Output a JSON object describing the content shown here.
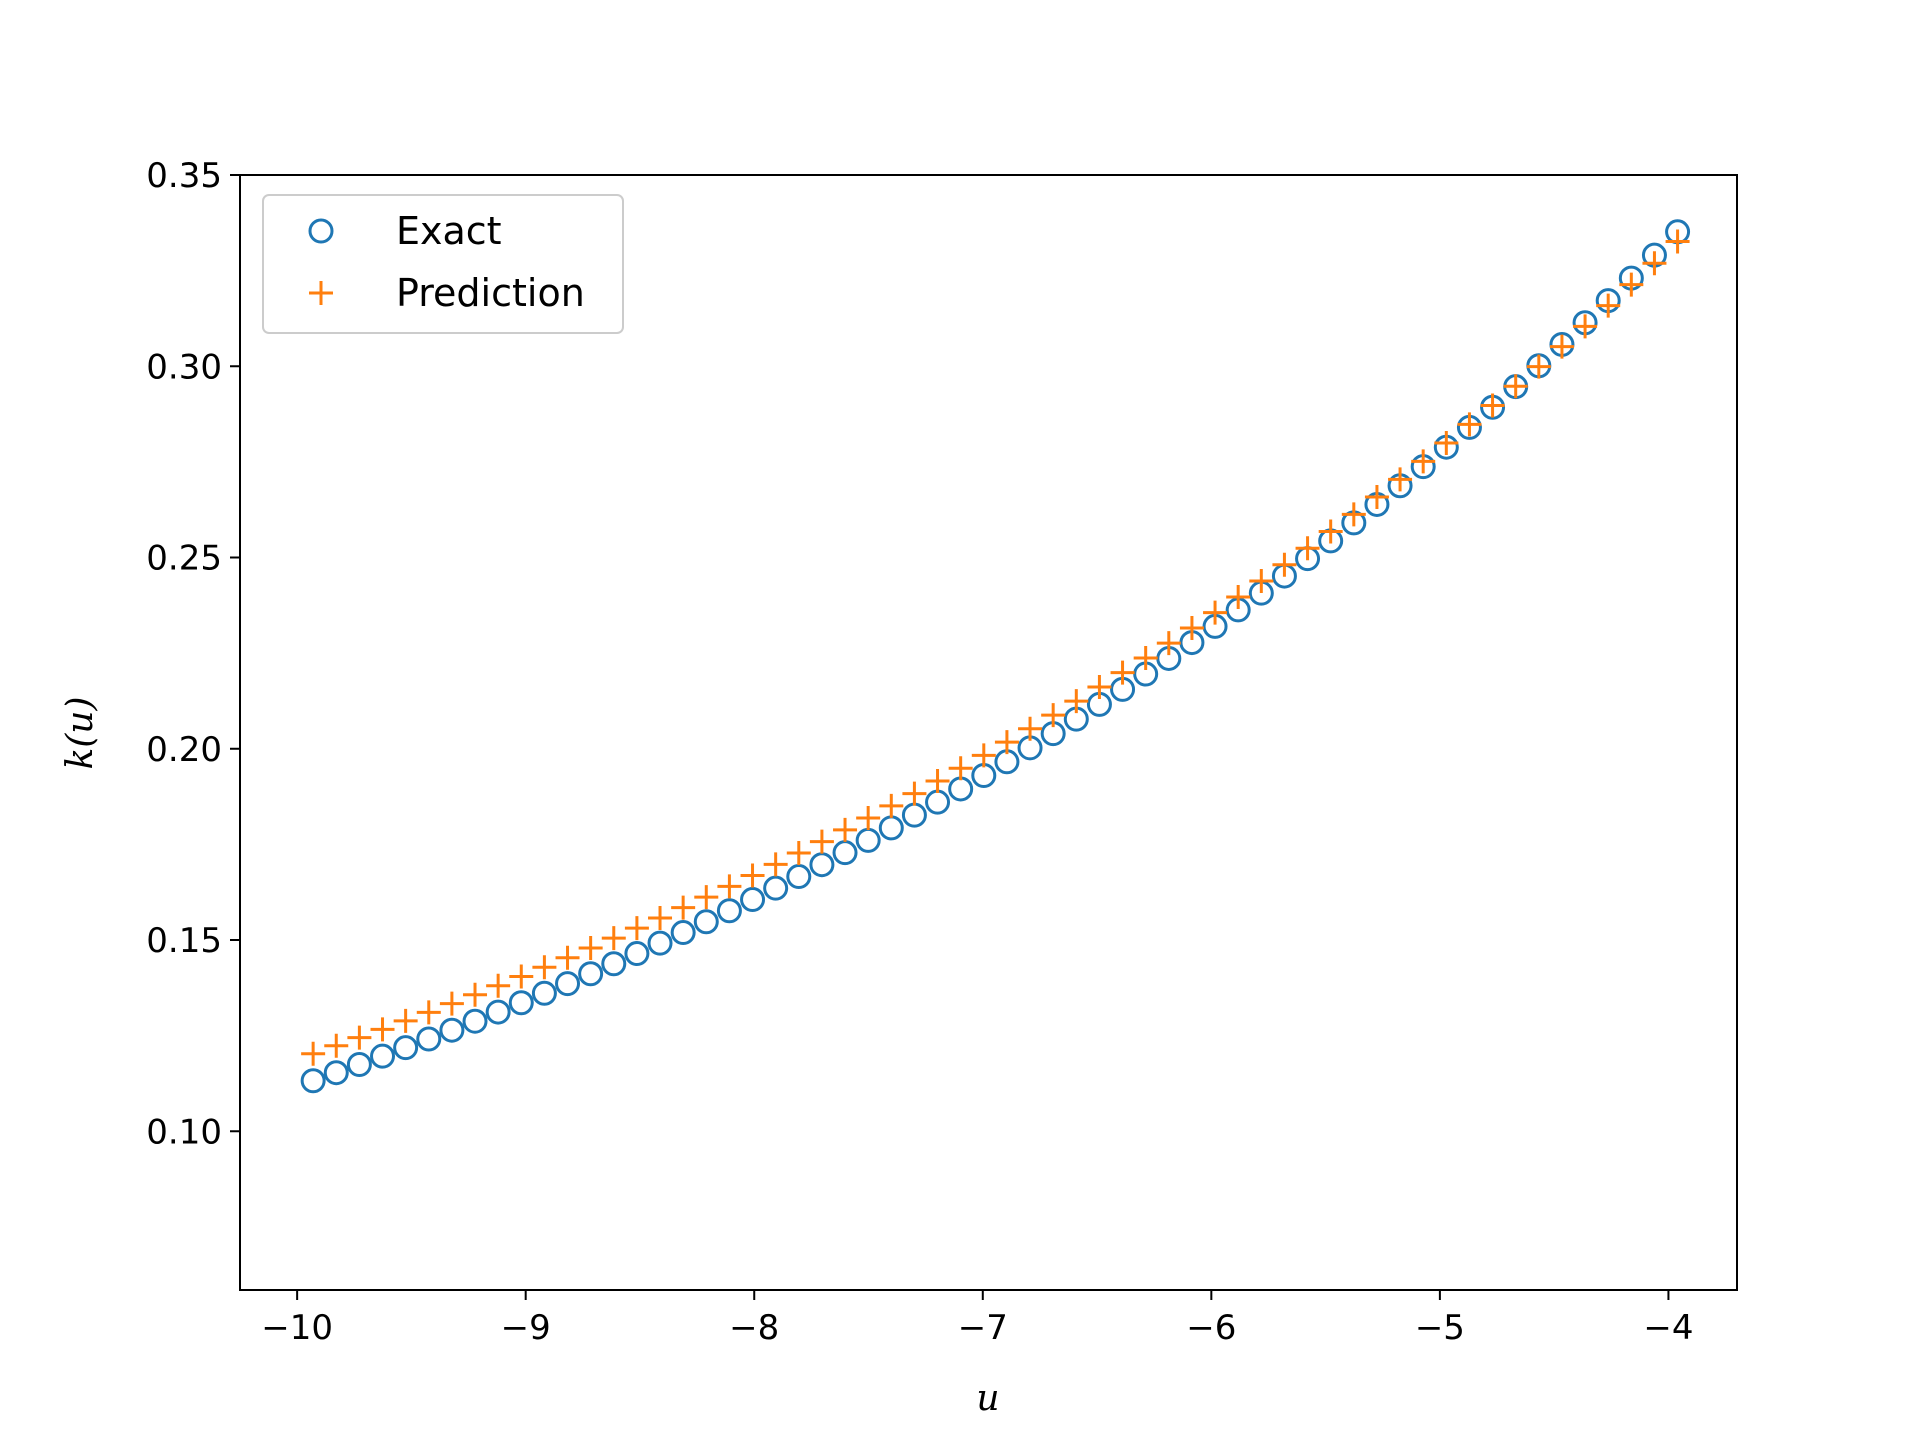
{
  "chart_data": {
    "type": "scatter",
    "xlabel": "u",
    "ylabel": "k(u)",
    "xlim": [
      -10.25,
      -3.7
    ],
    "ylim": [
      0.0585,
      0.35
    ],
    "xticks": [
      -10,
      -9,
      -8,
      -7,
      -6,
      -5,
      -4
    ],
    "xtick_labels": [
      "−10",
      "−9",
      "−8",
      "−7",
      "−6",
      "−5",
      "−4"
    ],
    "yticks": [
      0.1,
      0.15,
      0.2,
      0.25,
      0.3,
      0.35
    ],
    "ytick_labels": [
      "0.10",
      "0.15",
      "0.20",
      "0.25",
      "0.30",
      "0.35"
    ],
    "grid": false,
    "legend_position": "top-left",
    "model": {
      "x_start": -9.93,
      "x_end": -3.96,
      "n_points": 60,
      "exact": {
        "a": 0.6885,
        "b": 0.1818
      },
      "prediction": {
        "a": 0.6531,
        "b": 0.1704
      }
    },
    "series": [
      {
        "name": "Exact",
        "marker": "circle",
        "color": "#1f77b4"
      },
      {
        "name": "Prediction",
        "marker": "plus",
        "color": "#ff7f0e"
      }
    ]
  }
}
